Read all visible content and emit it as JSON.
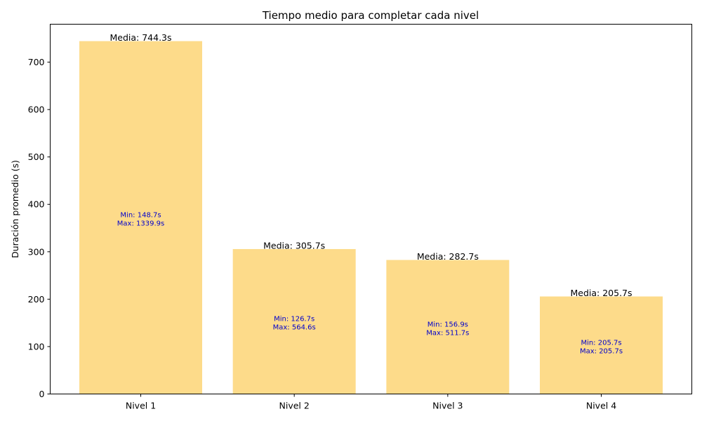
{
  "chart_data": {
    "type": "bar",
    "title": "Tiempo medio para completar cada nivel",
    "xlabel": "",
    "ylabel": "Duración promedio (s)",
    "ylim": [
      0,
      780
    ],
    "yticks": [
      0,
      100,
      200,
      300,
      400,
      500,
      600,
      700
    ],
    "categories": [
      "Nivel 1",
      "Nivel 2",
      "Nivel 3",
      "Nivel 4"
    ],
    "values": [
      744.3,
      305.7,
      282.7,
      205.7
    ],
    "mean_labels": [
      "Media: 744.3s",
      "Media: 305.7s",
      "Media: 282.7s",
      "Media: 205.7s"
    ],
    "min_labels": [
      "Min: 148.7s",
      "Min: 126.7s",
      "Min: 156.9s",
      "Min: 205.7s"
    ],
    "max_labels": [
      "Max: 1339.9s",
      "Max: 564.6s",
      "Max: 511.7s",
      "Max: 205.7s"
    ],
    "grid": false,
    "colors": {
      "bar": "#FDDB8A",
      "minmax_text": "#0000CC",
      "text": "#000000",
      "axis": "#000000"
    }
  }
}
